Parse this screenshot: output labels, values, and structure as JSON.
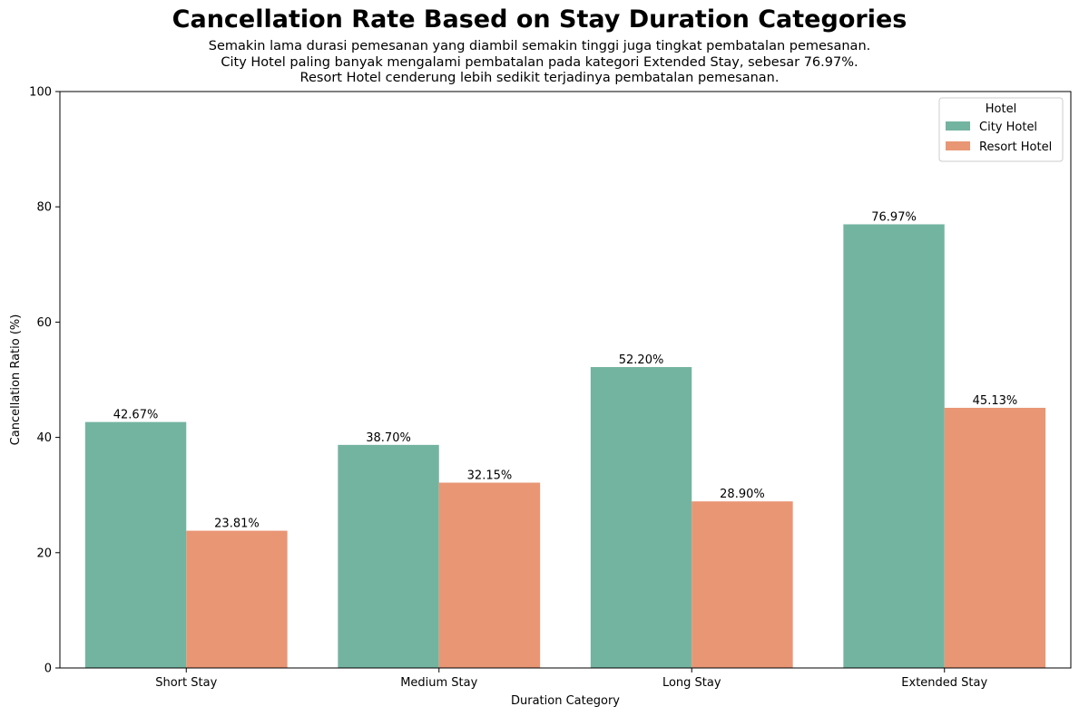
{
  "chart_data": {
    "type": "bar",
    "title": "Cancellation Rate Based on Stay Duration Categories",
    "subtitle_lines": [
      "Semakin lama durasi pemesanan yang diambil semakin tinggi juga tingkat pembatalan pemesanan.",
      "City Hotel paling banyak mengalami pembatalan pada kategori Extended Stay, sebesar 76.97%.",
      "Resort Hotel cenderung lebih sedikit terjadinya pembatalan pemesanan."
    ],
    "xlabel": "Duration Category",
    "ylabel": "Cancellation Ratio (%)",
    "ylim": [
      0,
      100
    ],
    "yticks": [
      0,
      20,
      40,
      60,
      80,
      100
    ],
    "categories": [
      "Short Stay",
      "Medium Stay",
      "Long Stay",
      "Extended Stay"
    ],
    "series": [
      {
        "name": "City Hotel",
        "color": "#73b4a0",
        "values": [
          42.67,
          38.7,
          52.2,
          76.97
        ],
        "labels": [
          "42.67%",
          "38.70%",
          "52.20%",
          "76.97%"
        ]
      },
      {
        "name": "Resort Hotel",
        "color": "#e99675",
        "values": [
          23.81,
          32.15,
          28.9,
          45.13
        ],
        "labels": [
          "23.81%",
          "32.15%",
          "28.90%",
          "45.13%"
        ]
      }
    ],
    "legend": {
      "title": "Hotel",
      "placement": "top-right"
    },
    "grid": false
  }
}
